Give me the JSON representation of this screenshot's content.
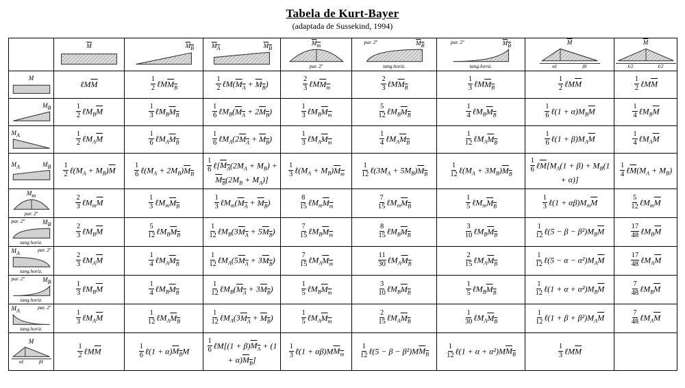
{
  "title": "Tabela de Kurt-Bayer",
  "subtitle": "(adaptada de Sussekind, 1994)",
  "columns": [
    {
      "shape": "empty"
    },
    {
      "shape": "rect",
      "label": "{M}"
    },
    {
      "shape": "tri-right",
      "label": "{M_B}"
    },
    {
      "shape": "trap",
      "label_a": "{M_A}",
      "label_b": "{M_B}"
    },
    {
      "shape": "dome",
      "label": "{M_m}",
      "note": "par. 2º"
    },
    {
      "shape": "par-convex-rise",
      "note": "par. 2º",
      "label": "{M_B}",
      "sub": "tang.horiz."
    },
    {
      "shape": "par-concave-rise",
      "note": "par. 2º",
      "label": "{M_B}",
      "sub": "tang.horiz."
    },
    {
      "shape": "tri-apex",
      "label": "{M}",
      "dim_l": "αℓ",
      "dim_r": "βℓ"
    },
    {
      "shape": "tri-mid",
      "label": "{M}",
      "dim_l": "ℓ/2",
      "dim_r": "ℓ/2"
    }
  ],
  "rows": [
    {
      "header": {
        "shape": "rect",
        "label": "M"
      },
      "cells": [
        "ℓM{M}",
        "$1/2$ℓM{M_B}",
        "$1/2$ℓM({M_A} + {M_B})",
        "$2/3$ℓM{M_m}",
        "$2/3$ℓM{M_B}",
        "$1/3$ℓM{M_B}",
        "$1/2$ℓM{M}",
        "$1/2$ℓM{M}"
      ]
    },
    {
      "header": {
        "shape": "tri-right",
        "label": "M_B"
      },
      "cells": [
        "$1/2$ℓM_B{M}",
        "$1/3$ℓM_B{M_B}",
        "$1/6$ℓM_B({M_A} + 2{M_B})",
        "$1/3$ℓM_B{M_m}",
        "$5/12$ℓM_B{M_B}",
        "$1/4$ℓM_B{M_B}",
        "$1/6$ℓ(1 + α)M_B{M}",
        "$1/4$ℓM_B{M}"
      ]
    },
    {
      "header": {
        "shape": "tri-left",
        "label": "M_A"
      },
      "cells": [
        "$1/2$ℓM_A{M}",
        "$1/6$ℓM_A{M_B}",
        "$1/6$ℓM_A(2{M_A} + {M_B})",
        "$1/3$ℓM_A{M_m}",
        "$1/4$ℓM_A{M_B}",
        "$1/12$ℓM_A{M_B}",
        "$1/6$ℓ(1 + β)M_A{M}",
        "$1/4$ℓM_A{M}"
      ]
    },
    {
      "header": {
        "shape": "trap",
        "label_a": "M_A",
        "label_b": "M_B"
      },
      "cells": [
        "$1/2$ℓ(M_A + M_B){M}",
        "$1/6$ℓ(M_A + 2M_B){M_B}",
        "$1/6$ℓ[{M_A}(2M_A + M_B) + {M_B}(2M_B + M_A)]",
        "$1/3$ℓ(M_A + M_B){M_m}",
        "$1/12$ℓ(3M_A + 5M_B){M_B}",
        "$1/12$ℓ(M_A + 3M_B){M_B}",
        "$1/6$ℓ{M}[M_A(1 + β) + M_B(1 + α)]",
        "$1/4$ℓ{M}(M_A + M_B)"
      ]
    },
    {
      "header": {
        "shape": "dome",
        "label": "M_m",
        "note": "par. 2º"
      },
      "cells": [
        "$2/3$ℓM_m{M}",
        "$1/3$ℓM_m{M_B}",
        "$1/3$ℓM_m({M_A} + {M_B})",
        "$8/15$ℓM_m{M_m}",
        "$7/15$ℓM_m{M_B}",
        "$1/5$ℓM_m{M_B}",
        "$1/3$ℓ(1 + αβ)M_m{M}",
        "$5/12$ℓM_m{M}"
      ]
    },
    {
      "header": {
        "shape": "par-convex-rise",
        "note": "par. 2º",
        "label": "M_B",
        "sub": "tang.horiz."
      },
      "cells": [
        "$2/3$ℓM_B{M}",
        "$5/12$ℓM_B{M_B}",
        "$1/12$ℓM_B(3{M_A} + 5{M_B})",
        "$7/15$ℓM_B{M_m}",
        "$8/15$ℓM_B{M_B}",
        "$3/10$ℓM_B{M_B}",
        "$1/12$ℓ(5 − β − β²)M_B{M}",
        "$17/48$ℓM_B{M}"
      ]
    },
    {
      "header": {
        "shape": "par-convex-fall",
        "label": "M_A",
        "note": "par. 2º",
        "sub": "tang.horiz."
      },
      "cells": [
        "$2/3$ℓM_A{M}",
        "$1/4$ℓM_A{M_B}",
        "$1/12$ℓM_A(5{M_A} + 3{M_B})",
        "$7/15$ℓM_A{M_m}",
        "$11/30$ℓM_A{M_B}",
        "$2/15$ℓM_A{M_B}",
        "$1/12$ℓ(5 − α − α²)M_A{M}",
        "$17/48$ℓM_A{M}"
      ]
    },
    {
      "header": {
        "shape": "par-concave-rise",
        "note": "par. 2º",
        "label": "M_B",
        "sub": "tang.horiz."
      },
      "cells": [
        "$1/3$ℓM_B{M}",
        "$1/4$ℓM_B{M_B}",
        "$1/12$ℓM_B({M_A} + 3{M_B})",
        "$1/5$ℓM_B{M_m}",
        "$3/10$ℓM_B{M_B}",
        "$1/5$ℓM_B{M_B}",
        "$1/12$ℓ(1 + α + α²)M_B{M}",
        "$7/48$ℓM_B{M}"
      ]
    },
    {
      "header": {
        "shape": "par-concave-fall",
        "label": "M_A",
        "note": "par. 2º",
        "sub": "tang.horiz."
      },
      "cells": [
        "$1/3$ℓM_A{M}",
        "$1/12$ℓM_A{M_B}",
        "$1/12$ℓM_A(3{M_A} + {M_B})",
        "$1/5$ℓM_A{M_m}",
        "$2/15$ℓM_A{M_B}",
        "$1/30$ℓM_A{M_B}",
        "$1/12$ℓ(1 + β + β²)M_A{M}",
        "$7/48$ℓM_A{M}"
      ]
    },
    {
      "header": {
        "shape": "tri-apex",
        "label": "M",
        "dim_l": "αℓ",
        "dim_r": "βℓ"
      },
      "cells": [
        "$1/2$ℓM{M}",
        "$1/6$ℓ(1 + α){M_B}M",
        "$1/6$ℓM[(1 + β){M_A} + (1 + α){M_B}]",
        "$1/3$ℓ(1 + αβ)M{M_m}",
        "$1/12$ℓ(5 − β − β²)M{M_B}",
        "$1/12$ℓ(1 + α + α²)M{M_B}",
        "$1/3$ℓM{M}",
        ""
      ]
    }
  ]
}
